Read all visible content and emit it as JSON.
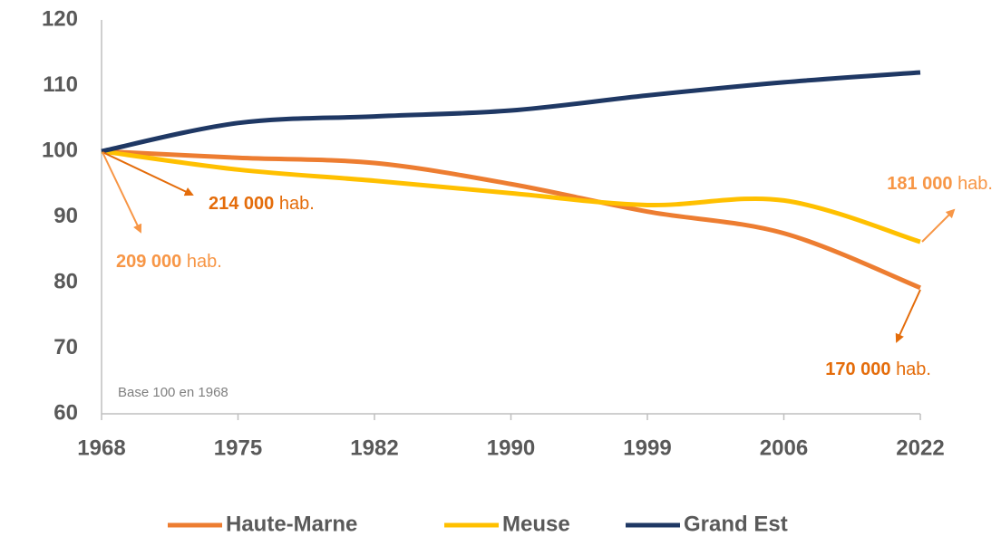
{
  "chart_data": {
    "type": "line",
    "categories": [
      "1968",
      "1975",
      "1982",
      "1990",
      "1999",
      "2006",
      "2022"
    ],
    "series": [
      {
        "name": "Haute-Marne",
        "color": "#ed7d31",
        "values": [
          100,
          99,
          98.2,
          95,
          90.8,
          87.5,
          79.2
        ]
      },
      {
        "name": "Meuse",
        "color": "#ffc000",
        "values": [
          100,
          97.2,
          95.5,
          93.6,
          91.8,
          92.5,
          86.2
        ]
      },
      {
        "name": "Grand Est",
        "color": "#1f3864",
        "values": [
          100,
          104.3,
          105.3,
          106.2,
          108.5,
          110.5,
          112
        ]
      }
    ],
    "ylim": [
      60,
      120
    ],
    "yticks": [
      60,
      70,
      80,
      90,
      100,
      110,
      120
    ],
    "grid": false,
    "note": "Base 100 en 1968",
    "annotations": [
      {
        "bold": "214 000",
        "text": "hab.",
        "color": "#e46c0a"
      },
      {
        "bold": "209 000",
        "text": "hab.",
        "color": "#f79646"
      },
      {
        "bold": "181 000",
        "text": "hab.",
        "color": "#f79646"
      },
      {
        "bold": "170 000",
        "text": "hab.",
        "color": "#e46c0a"
      }
    ],
    "legend": "bottom"
  }
}
